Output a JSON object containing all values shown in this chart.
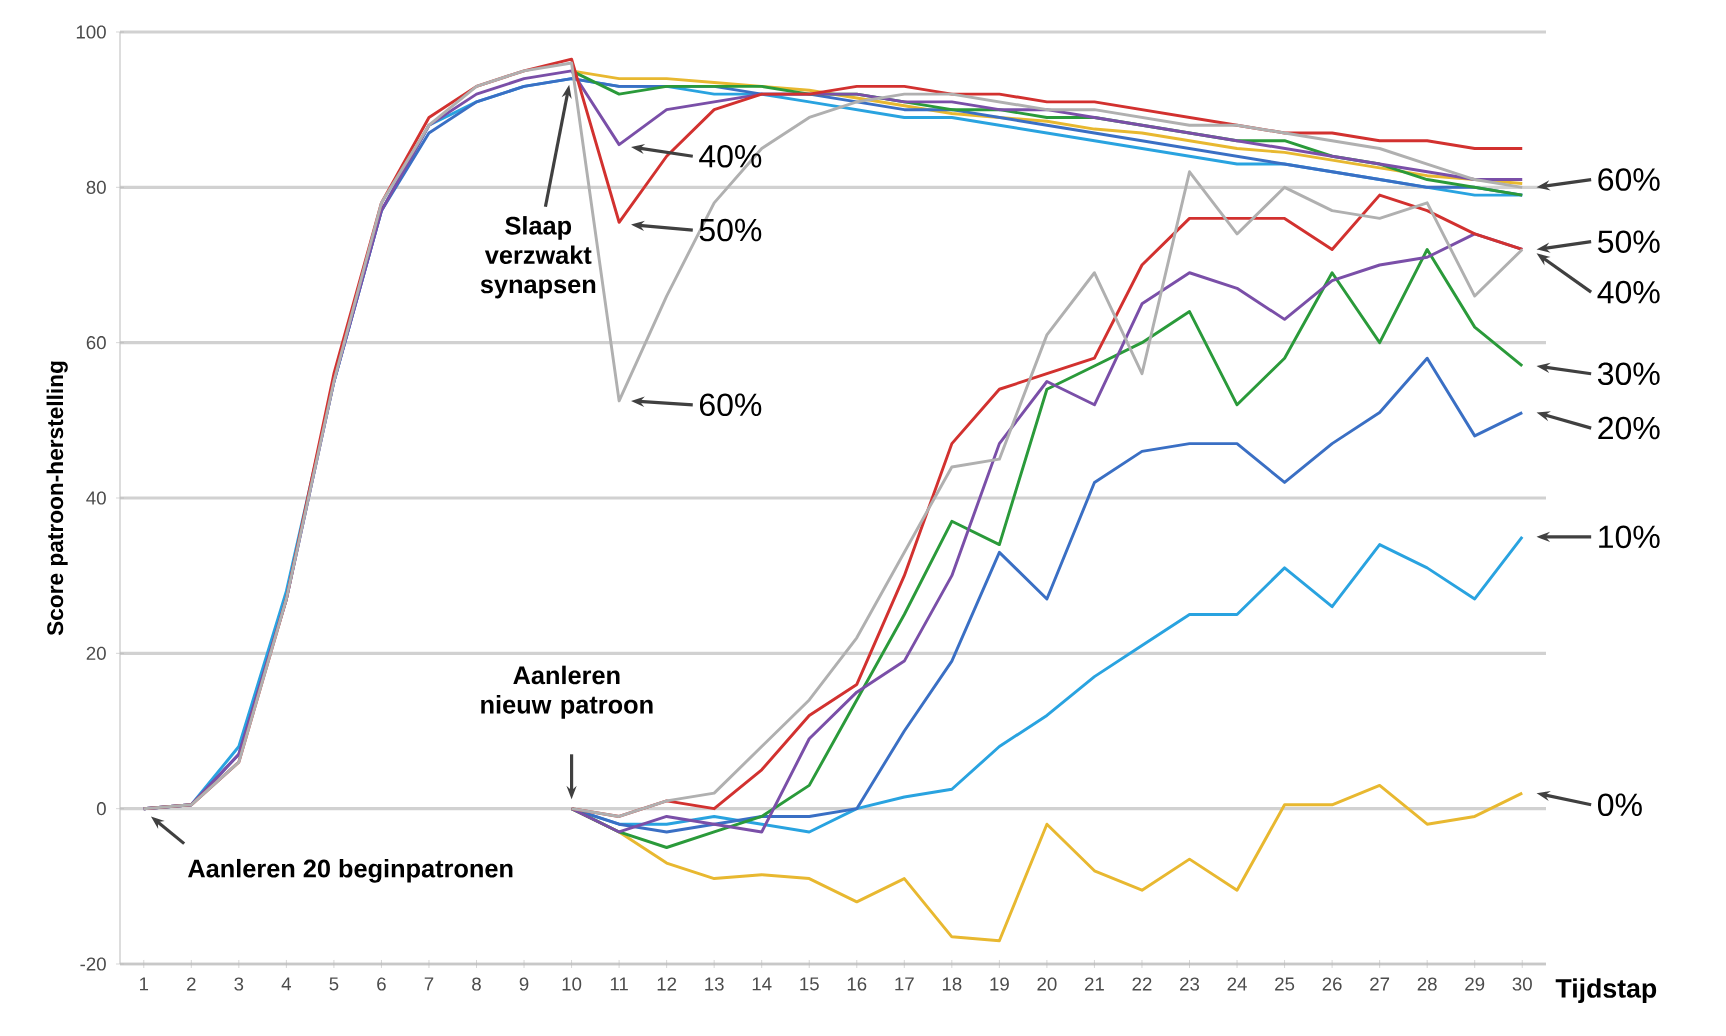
{
  "chart_data": {
    "type": "line",
    "xlabel": "Tijdstap",
    "ylabel": "Score patroon-herstelling",
    "categories": [
      "1",
      "2",
      "3",
      "4",
      "5",
      "6",
      "7",
      "8",
      "9",
      "10",
      "11",
      "12",
      "13",
      "14",
      "15",
      "16",
      "17",
      "18",
      "19",
      "20",
      "21",
      "22",
      "23",
      "24",
      "25",
      "26",
      "27",
      "28",
      "29",
      "30"
    ],
    "ylim": [
      -20,
      100
    ],
    "yticks": [
      -20,
      0,
      20,
      40,
      60,
      80,
      100
    ],
    "grid": "y",
    "marker": "none",
    "line_style": "solid",
    "series": [
      {
        "color": "#e8b830",
        "values": [
          null,
          null,
          null,
          null,
          null,
          null,
          null,
          null,
          null,
          95,
          94,
          94,
          93.5,
          93,
          92.5,
          91.5,
          90.5,
          89.5,
          89,
          88.5,
          87.5,
          87,
          86,
          85,
          84.5,
          83.5,
          82.5,
          81.5,
          81,
          80.5
        ]
      },
      {
        "color": "#29a3e0",
        "values": [
          0,
          0.5,
          8,
          28,
          55,
          77,
          88,
          91,
          93,
          94,
          93,
          93,
          92,
          92,
          91,
          90,
          89,
          89,
          88,
          87,
          86,
          85,
          84,
          83,
          83,
          82,
          81,
          80,
          79,
          79
        ]
      },
      {
        "color": "#3a6fc4",
        "values": [
          0,
          0.5,
          7,
          27,
          55,
          77,
          87,
          91,
          93,
          94,
          93,
          93,
          93,
          92,
          92,
          91,
          90,
          90,
          89,
          88,
          87,
          86,
          85,
          84,
          83,
          82,
          81,
          80,
          80,
          79
        ]
      },
      {
        "color": "#2a9a3a",
        "values": [
          null,
          null,
          null,
          null,
          null,
          null,
          null,
          null,
          null,
          95,
          92,
          93,
          93,
          93,
          92,
          92,
          91,
          90,
          90,
          89,
          89,
          88,
          87,
          86,
          86,
          84,
          83,
          81,
          80,
          79
        ]
      },
      {
        "color": "#7a4fa8",
        "values": [
          0,
          0.5,
          7,
          27,
          55,
          77,
          88,
          92,
          94,
          95,
          85.5,
          90,
          91,
          92,
          92,
          92,
          91,
          91,
          90,
          90,
          89,
          88,
          87,
          86,
          85,
          84,
          83,
          82,
          81,
          81
        ]
      },
      {
        "color": "#d2312f",
        "values": [
          0,
          0.5,
          6,
          27,
          56,
          78,
          89,
          93,
          95,
          96.5,
          75.5,
          84,
          90,
          92,
          92,
          93,
          93,
          92,
          92,
          91,
          91,
          90,
          89,
          88,
          87,
          87,
          86,
          86,
          85,
          85
        ]
      },
      {
        "color": "#b0b0b0",
        "values": [
          0,
          0.5,
          6,
          27,
          55,
          78,
          88,
          93,
          95,
          96,
          52.5,
          66,
          78,
          85,
          89,
          91,
          92,
          92,
          91,
          90,
          90,
          89,
          88,
          88,
          87,
          86,
          85,
          83,
          81,
          80
        ]
      },
      {
        "color": "#e8b830",
        "values": [
          null,
          null,
          null,
          null,
          null,
          null,
          null,
          null,
          null,
          0,
          -3,
          -7,
          -9,
          -8.5,
          -9,
          -12,
          -9,
          -16.5,
          -17,
          -2,
          -8,
          -10.5,
          -6.5,
          -10.5,
          0.5,
          0.5,
          3,
          -2,
          -1,
          2
        ]
      },
      {
        "color": "#29a3e0",
        "values": [
          null,
          null,
          null,
          null,
          null,
          null,
          null,
          null,
          null,
          0,
          -2,
          -2,
          -1,
          -2,
          -3,
          0,
          1.5,
          2.5,
          8,
          12,
          17,
          21,
          25,
          25,
          31,
          26,
          34,
          31,
          27,
          35
        ]
      },
      {
        "color": "#3a6fc4",
        "values": [
          null,
          null,
          null,
          null,
          null,
          null,
          null,
          null,
          null,
          0,
          -2,
          -3,
          -2,
          -1,
          -1,
          0,
          10,
          19,
          33,
          27,
          42,
          46,
          47,
          47,
          42,
          47,
          51,
          58,
          48,
          51
        ]
      },
      {
        "color": "#2a9a3a",
        "values": [
          null,
          null,
          null,
          null,
          null,
          null,
          null,
          null,
          null,
          0,
          -3,
          -5,
          -3,
          -1,
          3,
          14,
          25,
          37,
          34,
          54,
          57,
          60,
          64,
          52,
          58,
          69,
          60,
          72,
          62,
          57
        ]
      },
      {
        "color": "#7a4fa8",
        "values": [
          null,
          null,
          null,
          null,
          null,
          null,
          null,
          null,
          null,
          0,
          -3,
          -1,
          -2,
          -3,
          9,
          15,
          19,
          30,
          47,
          55,
          52,
          65,
          69,
          67,
          63,
          68,
          70,
          71,
          74,
          72
        ]
      },
      {
        "color": "#d2312f",
        "values": [
          null,
          null,
          null,
          null,
          null,
          null,
          null,
          null,
          null,
          0,
          -1,
          1,
          0,
          5,
          12,
          16,
          30,
          47,
          54,
          56,
          58,
          70,
          76,
          76,
          76,
          72,
          79,
          77,
          74,
          72
        ]
      },
      {
        "color": "#b0b0b0",
        "values": [
          null,
          null,
          null,
          null,
          null,
          null,
          null,
          null,
          null,
          0,
          -1,
          1,
          2,
          8,
          14,
          22,
          33,
          44,
          45,
          61,
          69,
          56,
          82,
          74,
          80,
          77,
          76,
          78,
          66,
          72
        ]
      }
    ],
    "annotations": [
      {
        "text": "Slaap verzwakt synapsen",
        "x": "10",
        "y": 94
      },
      {
        "text": "40%",
        "x": "11",
        "y": 85.5
      },
      {
        "text": "50%",
        "x": "11",
        "y": 75.5
      },
      {
        "text": "60%",
        "x": "11",
        "y": 52.5
      },
      "Aanleren nieuw patroon",
      {
        "text": "Aanleren 20 beginpatronen",
        "x": "1",
        "y": 0
      },
      {
        "text": "60%",
        "x": "30",
        "y": 80
      },
      {
        "text": "50%",
        "x": "30",
        "y": 72
      },
      {
        "text": "40%",
        "x": "30",
        "y": 72
      },
      {
        "text": "30%",
        "x": "30",
        "y": 57
      },
      {
        "text": "20%",
        "x": "30",
        "y": 51
      },
      {
        "text": "10%",
        "x": "30",
        "y": 35
      },
      {
        "text": "0%",
        "x": "30",
        "y": 2
      }
    ]
  }
}
